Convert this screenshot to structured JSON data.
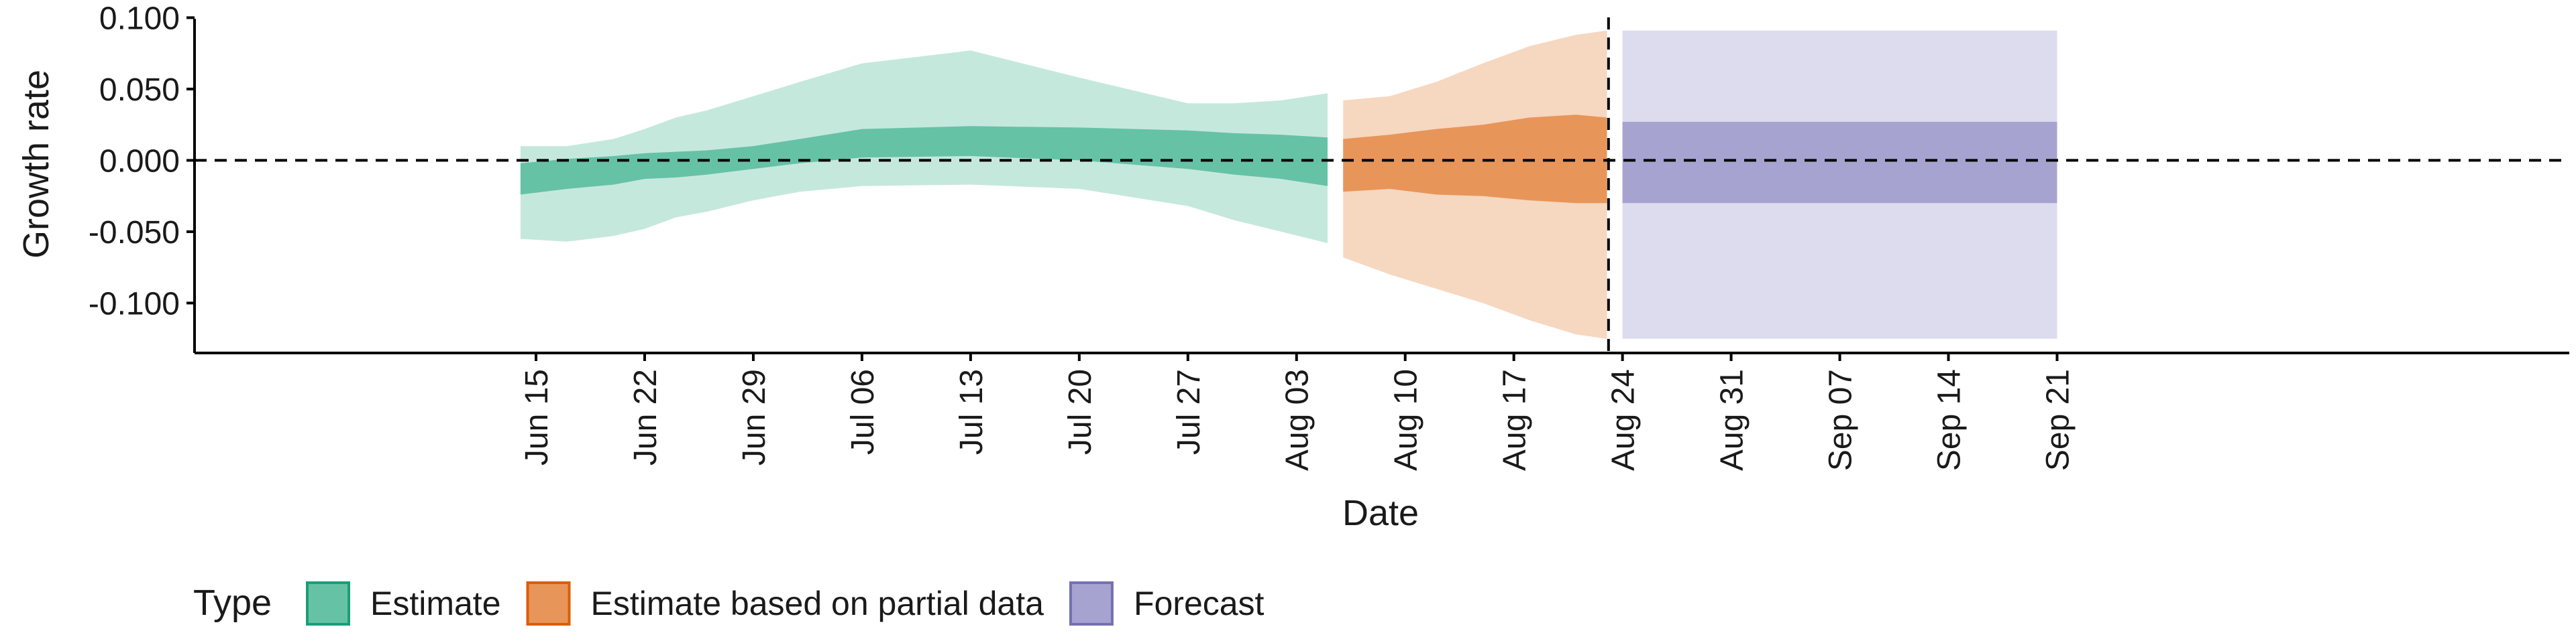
{
  "chart_data": {
    "type": "area",
    "xlabel": "Date",
    "ylabel": "Growth rate",
    "ylim": [
      -0.135,
      0.103
    ],
    "y_ticks": [
      {
        "value": 0.1,
        "label": "0.100"
      },
      {
        "value": 0.05,
        "label": "0.050"
      },
      {
        "value": 0.0,
        "label": "0.000"
      },
      {
        "value": -0.05,
        "label": "-0.050"
      },
      {
        "value": -0.1,
        "label": "-0.100"
      }
    ],
    "x_range_days": [
      -22,
      131
    ],
    "x_ticks": [
      {
        "day": 0,
        "label": "Jun 15"
      },
      {
        "day": 7,
        "label": "Jun 22"
      },
      {
        "day": 14,
        "label": "Jun 29"
      },
      {
        "day": 21,
        "label": "Jul 06"
      },
      {
        "day": 28,
        "label": "Jul 13"
      },
      {
        "day": 35,
        "label": "Jul 20"
      },
      {
        "day": 42,
        "label": "Jul 27"
      },
      {
        "day": 49,
        "label": "Aug 03"
      },
      {
        "day": 56,
        "label": "Aug 10"
      },
      {
        "day": 63,
        "label": "Aug 17"
      },
      {
        "day": 70,
        "label": "Aug 24"
      },
      {
        "day": 77,
        "label": "Aug 31"
      },
      {
        "day": 84,
        "label": "Sep 07"
      },
      {
        "day": 91,
        "label": "Sep 14"
      },
      {
        "day": 98,
        "label": "Sep 21"
      }
    ],
    "reference_line_y": 0,
    "forecast_start_day": 69.1,
    "legend": {
      "title": "Type",
      "placement": "bottom-left",
      "entries": [
        {
          "label": "Estimate",
          "fill": "#66c2a5",
          "border": "#1b9e77"
        },
        {
          "label": "Estimate based on partial data",
          "fill": "#e8955a",
          "border": "#d95f02"
        },
        {
          "label": "Forecast",
          "fill": "#a6a3d1",
          "border": "#7570b3"
        }
      ]
    },
    "series": [
      {
        "name": "Estimate",
        "color": "#66c2a5",
        "days": [
          -1,
          2,
          5,
          7,
          9,
          11,
          14,
          17,
          21,
          28,
          35,
          42,
          45,
          48,
          51
        ],
        "upper90": [
          0.01,
          0.01,
          0.015,
          0.022,
          0.03,
          0.035,
          0.045,
          0.055,
          0.068,
          0.077,
          0.058,
          0.04,
          0.04,
          0.042,
          0.047
        ],
        "lower90": [
          -0.055,
          -0.057,
          -0.053,
          -0.048,
          -0.04,
          -0.036,
          -0.028,
          -0.022,
          -0.018,
          -0.017,
          -0.02,
          -0.032,
          -0.042,
          -0.05,
          -0.058
        ],
        "upper50": [
          -0.002,
          0.001,
          0.003,
          0.005,
          0.006,
          0.007,
          0.01,
          0.015,
          0.022,
          0.024,
          0.023,
          0.021,
          0.019,
          0.018,
          0.016
        ],
        "lower50": [
          -0.024,
          -0.02,
          -0.017,
          -0.013,
          -0.012,
          -0.01,
          -0.006,
          -0.002,
          0.002,
          0.003,
          0.0,
          -0.006,
          -0.01,
          -0.013,
          -0.018
        ]
      },
      {
        "name": "Estimate based on partial data",
        "color": "#e8955a",
        "days": [
          52,
          55,
          58,
          61,
          64,
          67,
          69
        ],
        "upper90": [
          0.042,
          0.045,
          0.055,
          0.068,
          0.08,
          0.088,
          0.091
        ],
        "lower90": [
          -0.068,
          -0.08,
          -0.09,
          -0.1,
          -0.112,
          -0.122,
          -0.125
        ],
        "upper50": [
          0.015,
          0.018,
          0.022,
          0.025,
          0.03,
          0.032,
          0.03
        ],
        "lower50": [
          -0.022,
          -0.02,
          -0.024,
          -0.025,
          -0.028,
          -0.03,
          -0.03
        ]
      },
      {
        "name": "Forecast",
        "color": "#a6a3d1",
        "days": [
          70,
          98
        ],
        "upper90": [
          0.091,
          0.091
        ],
        "lower90": [
          -0.125,
          -0.125
        ],
        "upper50": [
          0.027,
          0.027
        ],
        "lower50": [
          -0.03,
          -0.03
        ]
      }
    ]
  }
}
